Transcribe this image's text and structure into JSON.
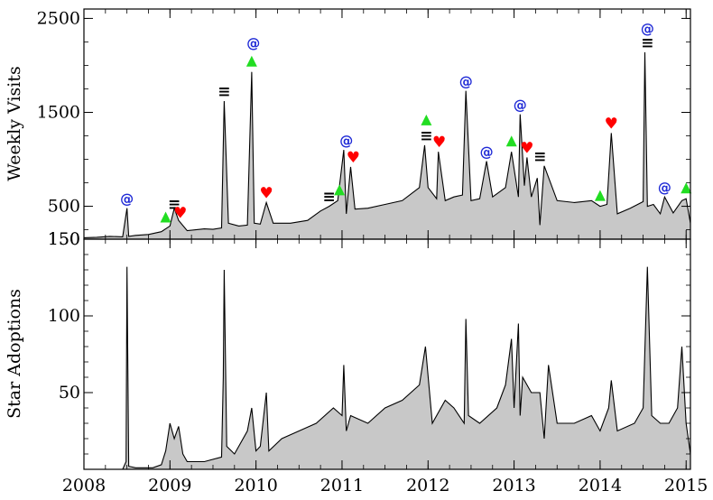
{
  "chart_data": [
    {
      "type": "area",
      "ylabel": "Weekly Visits",
      "ylim": [
        150,
        2600
      ],
      "yticks": [
        {
          "value": 2500,
          "label": "2500"
        },
        {
          "value": 1500,
          "label": "1500"
        },
        {
          "value": 500,
          "label": "500"
        },
        {
          "value": 150,
          "label": "150"
        }
      ],
      "x": [
        2008.0,
        2008.15,
        2008.3,
        2008.45,
        2008.5,
        2008.52,
        2008.6,
        2008.75,
        2008.9,
        2009.0,
        2009.05,
        2009.1,
        2009.2,
        2009.3,
        2009.4,
        2009.5,
        2009.6,
        2009.63,
        2009.68,
        2009.8,
        2009.9,
        2009.95,
        2009.98,
        2010.05,
        2010.12,
        2010.2,
        2010.4,
        2010.6,
        2010.75,
        2010.85,
        2010.95,
        2011.02,
        2011.05,
        2011.1,
        2011.15,
        2011.3,
        2011.5,
        2011.7,
        2011.9,
        2011.96,
        2012.0,
        2012.1,
        2012.12,
        2012.2,
        2012.3,
        2012.4,
        2012.44,
        2012.5,
        2012.6,
        2012.68,
        2012.75,
        2012.9,
        2012.97,
        2013.05,
        2013.07,
        2013.12,
        2013.15,
        2013.2,
        2013.27,
        2013.3,
        2013.35,
        2013.5,
        2013.7,
        2013.9,
        2014.0,
        2014.08,
        2014.13,
        2014.2,
        2014.35,
        2014.5,
        2014.52,
        2014.55,
        2014.62,
        2014.7,
        2014.75,
        2014.85,
        2014.95,
        2015.0,
        2015.05
      ],
      "y": [
        165,
        170,
        180,
        175,
        480,
        180,
        190,
        200,
        230,
        290,
        480,
        350,
        240,
        250,
        260,
        255,
        270,
        1620,
        320,
        290,
        300,
        1930,
        320,
        310,
        540,
        320,
        320,
        350,
        450,
        500,
        560,
        1100,
        420,
        920,
        470,
        480,
        520,
        560,
        700,
        1150,
        700,
        580,
        1080,
        560,
        600,
        620,
        1730,
        560,
        580,
        980,
        600,
        700,
        1080,
        600,
        1480,
        720,
        1020,
        600,
        800,
        300,
        930,
        560,
        540,
        560,
        500,
        520,
        1280,
        420,
        480,
        550,
        2140,
        500,
        520,
        420,
        600,
        430,
        560,
        580,
        320
      ],
      "annotations": [
        {
          "x": 2008.5,
          "y": 480,
          "symbol": "@"
        },
        {
          "x": 2008.95,
          "y": 270,
          "symbol": "▲"
        },
        {
          "x": 2009.05,
          "y": 420,
          "symbol": "≡"
        },
        {
          "x": 2009.12,
          "y": 330,
          "symbol": "♥"
        },
        {
          "x": 2009.63,
          "y": 1620,
          "symbol": "≡"
        },
        {
          "x": 2009.95,
          "y": 1930,
          "symbol": "▲"
        },
        {
          "x": 2009.97,
          "y": 2140,
          "symbol": "@"
        },
        {
          "x": 2010.12,
          "y": 540,
          "symbol": "♥"
        },
        {
          "x": 2010.85,
          "y": 500,
          "symbol": "≡"
        },
        {
          "x": 2010.97,
          "y": 560,
          "symbol": "▲"
        },
        {
          "x": 2011.05,
          "y": 1100,
          "symbol": "@"
        },
        {
          "x": 2011.13,
          "y": 920,
          "symbol": "♥"
        },
        {
          "x": 2011.98,
          "y": 1150,
          "symbol": "≡"
        },
        {
          "x": 2011.98,
          "y": 1150,
          "symbol": "▲"
        },
        {
          "x": 2012.13,
          "y": 1080,
          "symbol": "♥"
        },
        {
          "x": 2012.44,
          "y": 1730,
          "symbol": "@"
        },
        {
          "x": 2012.68,
          "y": 980,
          "symbol": "@"
        },
        {
          "x": 2012.97,
          "y": 1080,
          "symbol": "▲"
        },
        {
          "x": 2013.07,
          "y": 1480,
          "symbol": "@"
        },
        {
          "x": 2013.15,
          "y": 1020,
          "symbol": "♥"
        },
        {
          "x": 2013.3,
          "y": 930,
          "symbol": "≡"
        },
        {
          "x": 2014.0,
          "y": 500,
          "symbol": "▲"
        },
        {
          "x": 2014.13,
          "y": 1280,
          "symbol": "♥"
        },
        {
          "x": 2014.55,
          "y": 2140,
          "symbol": "≡"
        },
        {
          "x": 2014.55,
          "y": 2140,
          "symbol": "@"
        },
        {
          "x": 2014.75,
          "y": 600,
          "symbol": "@"
        },
        {
          "x": 2015.0,
          "y": 580,
          "symbol": "▲"
        }
      ]
    },
    {
      "type": "area",
      "ylabel": "Star Adoptions",
      "ylim": [
        0,
        150
      ],
      "yticks": [
        {
          "value": 150,
          "label": "150"
        },
        {
          "value": 100,
          "label": "100"
        },
        {
          "value": 50,
          "label": "50"
        }
      ],
      "xlim": [
        2008.0,
        2015.05
      ],
      "xticks": [
        {
          "value": 2008,
          "label": "2008"
        },
        {
          "value": 2009,
          "label": "2009"
        },
        {
          "value": 2010,
          "label": "2010"
        },
        {
          "value": 2011,
          "label": "2011"
        },
        {
          "value": 2012,
          "label": "2012"
        },
        {
          "value": 2013,
          "label": "2013"
        },
        {
          "value": 2014,
          "label": "2014"
        },
        {
          "value": 2015,
          "label": "2015"
        }
      ],
      "x": [
        2008.0,
        2008.45,
        2008.49,
        2008.5,
        2008.52,
        2008.6,
        2008.8,
        2008.9,
        2008.95,
        2009.0,
        2009.05,
        2009.1,
        2009.15,
        2009.2,
        2009.4,
        2009.6,
        2009.62,
        2009.63,
        2009.66,
        2009.75,
        2009.9,
        2009.95,
        2010.0,
        2010.05,
        2010.12,
        2010.15,
        2010.3,
        2010.5,
        2010.7,
        2010.9,
        2011.0,
        2011.02,
        2011.05,
        2011.1,
        2011.3,
        2011.5,
        2011.7,
        2011.9,
        2011.97,
        2012.05,
        2012.2,
        2012.3,
        2012.42,
        2012.44,
        2012.47,
        2012.6,
        2012.8,
        2012.9,
        2012.97,
        2013.0,
        2013.05,
        2013.07,
        2013.1,
        2013.2,
        2013.3,
        2013.35,
        2013.4,
        2013.5,
        2013.7,
        2013.9,
        2014.0,
        2014.1,
        2014.13,
        2014.2,
        2014.4,
        2014.5,
        2014.55,
        2014.6,
        2014.7,
        2014.8,
        2014.9,
        2014.95,
        2015.0,
        2015.05
      ],
      "y": [
        0,
        0,
        5,
        132,
        2,
        1,
        1,
        3,
        12,
        30,
        20,
        28,
        10,
        5,
        5,
        8,
        60,
        130,
        15,
        10,
        25,
        40,
        12,
        15,
        50,
        12,
        20,
        25,
        30,
        40,
        35,
        68,
        25,
        35,
        30,
        40,
        45,
        55,
        80,
        30,
        45,
        40,
        30,
        98,
        35,
        30,
        40,
        55,
        85,
        40,
        95,
        35,
        60,
        50,
        50,
        20,
        68,
        30,
        30,
        35,
        25,
        40,
        58,
        25,
        30,
        40,
        132,
        35,
        30,
        30,
        40,
        80,
        30,
        10
      ]
    }
  ]
}
